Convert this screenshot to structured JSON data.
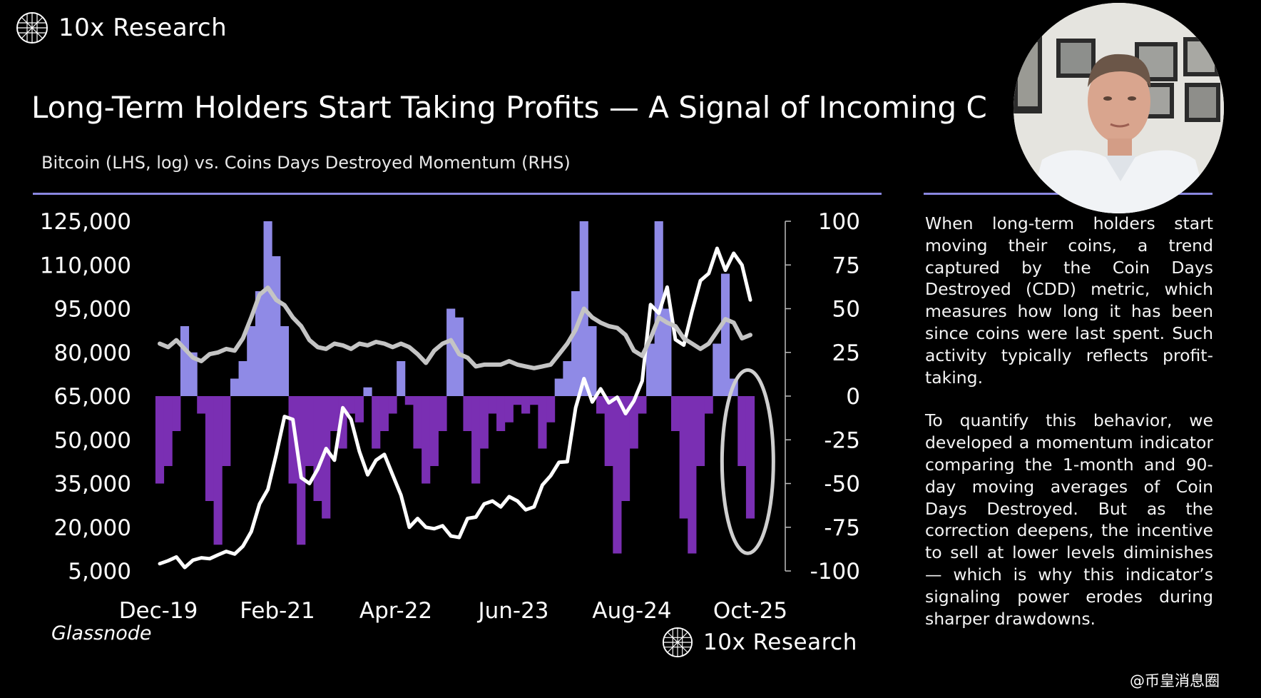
{
  "brand": {
    "name": "10x Research"
  },
  "header": {
    "title": "Long-Term Holders Start Taking Profits — A Signal of Incoming C",
    "subtitle": "Bitcoin (LHS, log) vs. Coins Days Destroyed Momentum (RHS)"
  },
  "sidebar": {
    "paragraphs": [
      "When long-term holders start moving their coins, a trend captured by the Coin Days Destroyed (CDD) metric, which measures how long it has been since coins were last spent. Such activity typically reflects profit-taking.",
      "To quantify this behavior, we developed a momentum indicator comparing the 1-month and 90-day moving averages of Coin Days Destroyed. But as the correction deepens, the incentive to sell at lower levels diminishes — which is why this indicator’s signaling power erodes during sharper drawdowns."
    ]
  },
  "footer": {
    "source": "Glassnode",
    "brand": "10x Research"
  },
  "watermark": "@币皇消息圈",
  "colors": {
    "positive_bar": "#8f8ae6",
    "negative_bar": "#7a2fb3",
    "bitcoin_line": "#ffffff",
    "cdd_line": "#c4c4c4",
    "rule": "#8a87e0",
    "highlight_ellipse": "#cfcfcf"
  },
  "chart_data": {
    "type": "line",
    "x_ticks": [
      "Dec-19",
      "Feb-21",
      "Apr-22",
      "Jun-23",
      "Aug-24",
      "Oct-25"
    ],
    "left_axis": {
      "label": "Bitcoin (LHS, log)",
      "ticks": [
        "125,000",
        "110,000",
        "95,000",
        "80,000",
        "65,000",
        "50,000",
        "35,000",
        "20,000",
        "5,000"
      ],
      "ylim": [
        5000,
        125000
      ]
    },
    "right_axis": {
      "label": "Coins Days Destroyed Momentum (RHS)",
      "ticks": [
        "100",
        "75",
        "50",
        "25",
        "0",
        "-25",
        "-50",
        "-75",
        "-100"
      ],
      "ylim": [
        -100,
        100
      ]
    },
    "x_range": [
      "2019-12",
      "2025-11"
    ],
    "series": [
      {
        "name": "Bitcoin",
        "axis": "left",
        "style": "line",
        "points": [
          [
            "2019-12",
            7500
          ],
          [
            "2020-01",
            8500
          ],
          [
            "2020-02",
            9800
          ],
          [
            "2020-03",
            6200
          ],
          [
            "2020-04",
            8700
          ],
          [
            "2020-05",
            9500
          ],
          [
            "2020-06",
            9200
          ],
          [
            "2020-07",
            10500
          ],
          [
            "2020-08",
            11700
          ],
          [
            "2020-09",
            10800
          ],
          [
            "2020-10",
            13500
          ],
          [
            "2020-11",
            18500
          ],
          [
            "2020-12",
            28000
          ],
          [
            "2021-01",
            33000
          ],
          [
            "2021-02",
            45000
          ],
          [
            "2021-03",
            58000
          ],
          [
            "2021-04",
            57000
          ],
          [
            "2021-05",
            37000
          ],
          [
            "2021-06",
            35000
          ],
          [
            "2021-07",
            40000
          ],
          [
            "2021-08",
            47000
          ],
          [
            "2021-09",
            43000
          ],
          [
            "2021-10",
            61000
          ],
          [
            "2021-11",
            57000
          ],
          [
            "2021-12",
            46000
          ],
          [
            "2022-01",
            38000
          ],
          [
            "2022-02",
            43000
          ],
          [
            "2022-03",
            45000
          ],
          [
            "2022-04",
            38000
          ],
          [
            "2022-05",
            31000
          ],
          [
            "2022-06",
            20000
          ],
          [
            "2022-07",
            23000
          ],
          [
            "2022-08",
            20000
          ],
          [
            "2022-09",
            19500
          ],
          [
            "2022-10",
            20500
          ],
          [
            "2022-11",
            17000
          ],
          [
            "2022-12",
            16500
          ],
          [
            "2023-01",
            23000
          ],
          [
            "2023-02",
            23500
          ],
          [
            "2023-03",
            28000
          ],
          [
            "2023-04",
            29000
          ],
          [
            "2023-05",
            27000
          ],
          [
            "2023-06",
            30500
          ],
          [
            "2023-07",
            29000
          ],
          [
            "2023-08",
            26000
          ],
          [
            "2023-09",
            27000
          ],
          [
            "2023-10",
            34500
          ],
          [
            "2023-11",
            37700
          ],
          [
            "2023-12",
            42300
          ],
          [
            "2024-01",
            42500
          ],
          [
            "2024-02",
            61000
          ],
          [
            "2024-03",
            71000
          ],
          [
            "2024-04",
            63000
          ],
          [
            "2024-05",
            67500
          ],
          [
            "2024-06",
            62700
          ],
          [
            "2024-07",
            64600
          ],
          [
            "2024-08",
            59000
          ],
          [
            "2024-09",
            63300
          ],
          [
            "2024-10",
            70200
          ],
          [
            "2024-11",
            96400
          ],
          [
            "2024-12",
            93400
          ],
          [
            "2025-01",
            102400
          ],
          [
            "2025-02",
            84400
          ],
          [
            "2025-03",
            82500
          ],
          [
            "2025-04",
            94200
          ],
          [
            "2025-05",
            104600
          ],
          [
            "2025-06",
            107100
          ],
          [
            "2025-07",
            115700
          ],
          [
            "2025-08",
            108200
          ],
          [
            "2025-09",
            114000
          ],
          [
            "2025-10",
            110000
          ],
          [
            "2025-11",
            98000
          ]
        ]
      },
      {
        "name": "CDD Momentum",
        "axis": "right",
        "style": "bar",
        "points": [
          [
            "2019-12",
            -50
          ],
          [
            "2020-01",
            -40
          ],
          [
            "2020-02",
            -20
          ],
          [
            "2020-03",
            40
          ],
          [
            "2020-04",
            25
          ],
          [
            "2020-05",
            -10
          ],
          [
            "2020-06",
            -60
          ],
          [
            "2020-07",
            -85
          ],
          [
            "2020-08",
            -40
          ],
          [
            "2020-09",
            10
          ],
          [
            "2020-10",
            20
          ],
          [
            "2020-11",
            40
          ],
          [
            "2020-12",
            60
          ],
          [
            "2021-01",
            100
          ],
          [
            "2021-02",
            80
          ],
          [
            "2021-03",
            40
          ],
          [
            "2021-04",
            -50
          ],
          [
            "2021-05",
            -85
          ],
          [
            "2021-06",
            -40
          ],
          [
            "2021-07",
            -60
          ],
          [
            "2021-08",
            -70
          ],
          [
            "2021-09",
            -20
          ],
          [
            "2021-10",
            -30
          ],
          [
            "2021-11",
            -10
          ],
          [
            "2021-12",
            -15
          ],
          [
            "2022-01",
            5
          ],
          [
            "2022-02",
            -30
          ],
          [
            "2022-03",
            -20
          ],
          [
            "2022-04",
            -10
          ],
          [
            "2022-05",
            20
          ],
          [
            "2022-06",
            -5
          ],
          [
            "2022-07",
            -30
          ],
          [
            "2022-08",
            -50
          ],
          [
            "2022-09",
            -40
          ],
          [
            "2022-10",
            -20
          ],
          [
            "2022-11",
            50
          ],
          [
            "2022-12",
            45
          ],
          [
            "2023-01",
            -20
          ],
          [
            "2023-02",
            -50
          ],
          [
            "2023-03",
            -30
          ],
          [
            "2023-04",
            -10
          ],
          [
            "2023-05",
            -20
          ],
          [
            "2023-06",
            -15
          ],
          [
            "2023-07",
            -5
          ],
          [
            "2023-08",
            -10
          ],
          [
            "2023-09",
            -5
          ],
          [
            "2023-10",
            -30
          ],
          [
            "2023-11",
            -15
          ],
          [
            "2023-12",
            10
          ],
          [
            "2024-01",
            20
          ],
          [
            "2024-02",
            60
          ],
          [
            "2024-03",
            100
          ],
          [
            "2024-04",
            40
          ],
          [
            "2024-05",
            -10
          ],
          [
            "2024-06",
            -40
          ],
          [
            "2024-07",
            -90
          ],
          [
            "2024-08",
            -60
          ],
          [
            "2024-09",
            -30
          ],
          [
            "2024-10",
            -10
          ],
          [
            "2024-11",
            30
          ],
          [
            "2024-12",
            100
          ],
          [
            "2025-01",
            50
          ],
          [
            "2025-02",
            -20
          ],
          [
            "2025-03",
            -70
          ],
          [
            "2025-04",
            -90
          ],
          [
            "2025-05",
            -40
          ],
          [
            "2025-06",
            -10
          ],
          [
            "2025-07",
            30
          ],
          [
            "2025-08",
            70
          ],
          [
            "2025-09",
            10
          ],
          [
            "2025-10",
            -40
          ],
          [
            "2025-11",
            -70
          ]
        ]
      },
      {
        "name": "CDD Momentum (smoothed)",
        "axis": "right",
        "style": "line",
        "points": [
          [
            "2019-12",
            30
          ],
          [
            "2020-01",
            28
          ],
          [
            "2020-02",
            32
          ],
          [
            "2020-03",
            27
          ],
          [
            "2020-04",
            22
          ],
          [
            "2020-05",
            20
          ],
          [
            "2020-06",
            24
          ],
          [
            "2020-07",
            25
          ],
          [
            "2020-08",
            27
          ],
          [
            "2020-09",
            26
          ],
          [
            "2020-10",
            33
          ],
          [
            "2020-11",
            45
          ],
          [
            "2020-12",
            58
          ],
          [
            "2021-01",
            62
          ],
          [
            "2021-02",
            55
          ],
          [
            "2021-03",
            52
          ],
          [
            "2021-04",
            45
          ],
          [
            "2021-05",
            40
          ],
          [
            "2021-06",
            32
          ],
          [
            "2021-07",
            28
          ],
          [
            "2021-08",
            27
          ],
          [
            "2021-09",
            30
          ],
          [
            "2021-10",
            29
          ],
          [
            "2021-11",
            27
          ],
          [
            "2021-12",
            30
          ],
          [
            "2022-01",
            29
          ],
          [
            "2022-02",
            31
          ],
          [
            "2022-03",
            30
          ],
          [
            "2022-04",
            28
          ],
          [
            "2022-05",
            30
          ],
          [
            "2022-06",
            28
          ],
          [
            "2022-07",
            24
          ],
          [
            "2022-08",
            19
          ],
          [
            "2022-09",
            26
          ],
          [
            "2022-10",
            30
          ],
          [
            "2022-11",
            32
          ],
          [
            "2022-12",
            24
          ],
          [
            "2023-01",
            22
          ],
          [
            "2023-02",
            17
          ],
          [
            "2023-03",
            18
          ],
          [
            "2023-04",
            18
          ],
          [
            "2023-05",
            18
          ],
          [
            "2023-06",
            20
          ],
          [
            "2023-07",
            18
          ],
          [
            "2023-08",
            17
          ],
          [
            "2023-09",
            16
          ],
          [
            "2023-10",
            17
          ],
          [
            "2023-11",
            18
          ],
          [
            "2023-12",
            24
          ],
          [
            "2024-01",
            30
          ],
          [
            "2024-02",
            38
          ],
          [
            "2024-03",
            50
          ],
          [
            "2024-04",
            45
          ],
          [
            "2024-05",
            42
          ],
          [
            "2024-06",
            40
          ],
          [
            "2024-07",
            39
          ],
          [
            "2024-08",
            35
          ],
          [
            "2024-09",
            26
          ],
          [
            "2024-10",
            23
          ],
          [
            "2024-11",
            33
          ],
          [
            "2024-12",
            45
          ],
          [
            "2025-01",
            42
          ],
          [
            "2025-02",
            40
          ],
          [
            "2025-03",
            33
          ],
          [
            "2025-04",
            30
          ],
          [
            "2025-05",
            27
          ],
          [
            "2025-06",
            30
          ],
          [
            "2025-07",
            37
          ],
          [
            "2025-08",
            44
          ],
          [
            "2025-09",
            42
          ],
          [
            "2025-10",
            33
          ],
          [
            "2025-11",
            35
          ]
        ]
      }
    ],
    "annotations": [
      {
        "type": "ellipse",
        "x": "2025-10",
        "y_range": [
          -85,
          10
        ],
        "note": ""
      }
    ],
    "grid": false,
    "legend": "none"
  }
}
